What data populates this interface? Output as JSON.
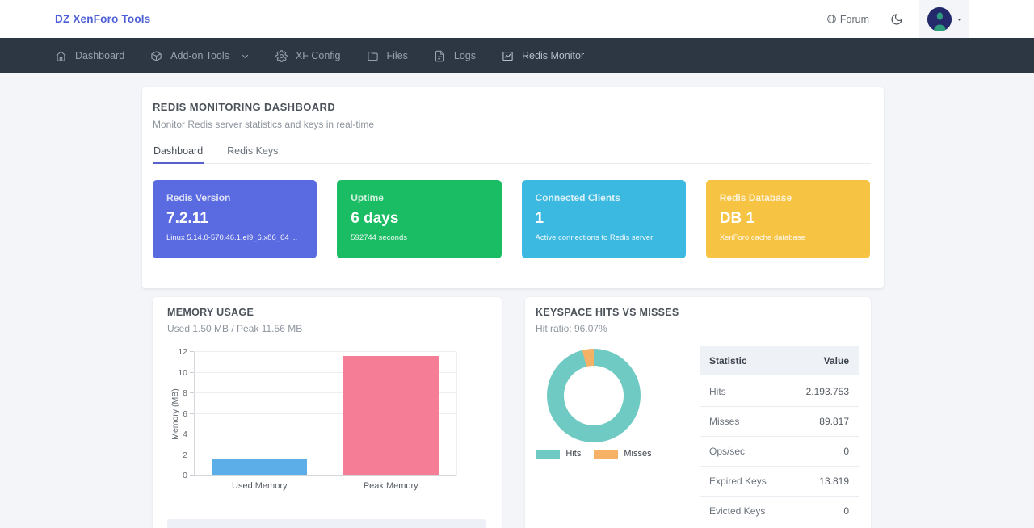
{
  "header": {
    "brand": "DZ XenForo Tools",
    "forum_label": "Forum"
  },
  "nav": {
    "items": [
      {
        "label": "Dashboard",
        "icon": "home-icon"
      },
      {
        "label": "Add-on Tools",
        "icon": "package-icon",
        "has_dropdown": true
      },
      {
        "label": "XF Config",
        "icon": "gear-icon"
      },
      {
        "label": "Files",
        "icon": "folder-icon"
      },
      {
        "label": "Logs",
        "icon": "file-icon"
      },
      {
        "label": "Redis Monitor",
        "icon": "line-chart-icon",
        "active": true
      }
    ]
  },
  "page": {
    "title": "REDIS MONITORING DASHBOARD",
    "subtitle": "Monitor Redis server statistics and keys in real-time"
  },
  "tabs": [
    {
      "label": "Dashboard",
      "active": true
    },
    {
      "label": "Redis Keys",
      "active": false
    }
  ],
  "stat_cards": [
    {
      "label": "Redis Version",
      "value": "7.2.11",
      "sub": "Linux 5.14.0-570.46.1.el9_6.x86_64 ...",
      "color": "#5a6ae0"
    },
    {
      "label": "Uptime",
      "value": "6 days",
      "sub": "592744 seconds",
      "color": "#1abd63"
    },
    {
      "label": "Connected Clients",
      "value": "1",
      "sub": "Active connections to Redis server",
      "color": "#3cb9e0"
    },
    {
      "label": "Redis Database",
      "value": "DB 1",
      "sub": "XenForo cache database",
      "color": "#f6c343"
    }
  ],
  "stats_table": {
    "columns": [
      "Statistic",
      "Value"
    ],
    "rows": [
      [
        "Hits",
        "2.193.753"
      ],
      [
        "Misses",
        "89.817"
      ],
      [
        "Ops/sec",
        "0"
      ],
      [
        "Expired Keys",
        "13.819"
      ],
      [
        "Evicted Keys",
        "0"
      ]
    ]
  },
  "chart_data": [
    {
      "type": "bar",
      "title": "MEMORY USAGE",
      "subtitle": "Used 1.50 MB / Peak 11.56 MB",
      "categories": [
        "Used Memory",
        "Peak Memory"
      ],
      "values": [
        1.5,
        11.56
      ],
      "colors": [
        "#5caee8",
        "#f57d95"
      ],
      "xlabel": "",
      "ylabel": "Memory (MB)",
      "ylim": [
        0,
        12
      ],
      "yticks": [
        0,
        2,
        4,
        6,
        8,
        10,
        12
      ],
      "grid": true,
      "legend": "none"
    },
    {
      "type": "pie",
      "donut": true,
      "title": "KEYSPACE HITS VS MISSES",
      "subtitle": "Hit ratio: 96.07%",
      "hit_ratio_percent": 96.07,
      "labels": [
        "Hits",
        "Misses"
      ],
      "values": [
        2193753,
        89817
      ],
      "percentages": [
        96.07,
        3.93
      ],
      "colors": [
        "#6fcac3",
        "#f5b266"
      ],
      "legend_position": "bottom"
    }
  ],
  "colors": {
    "accent": "#5661cb",
    "brand_text": "#4c5fd6",
    "nav_bg": "#2c3743",
    "page_bg": "#f3f5f9"
  }
}
